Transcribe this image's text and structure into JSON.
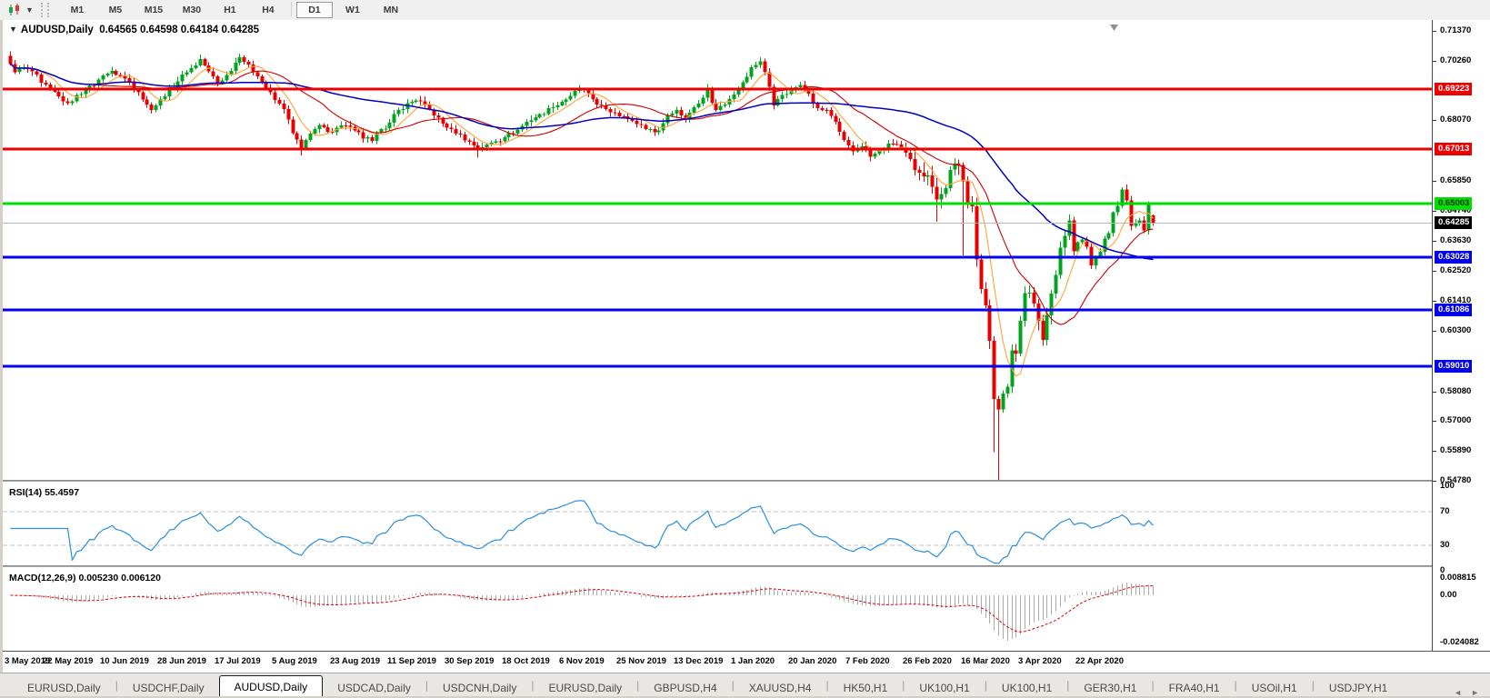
{
  "toolbar": {
    "chart_icon": "candlestick-chart",
    "dropdown_caret": "▾",
    "timeframes": [
      "M1",
      "M5",
      "M15",
      "M30",
      "H1",
      "H4",
      "D1",
      "W1",
      "MN"
    ],
    "active_timeframe": "D1"
  },
  "chart": {
    "dropdown_glyph": "▼",
    "symbol_label": "AUDUSD,Daily",
    "ohlc_text": "0.64565 0.64598 0.64184 0.64285"
  },
  "price_axis": {
    "ticks": [
      "0.71370",
      "0.70260",
      "0.68070",
      "0.65850",
      "0.64740",
      "0.63630",
      "0.62520",
      "0.61410",
      "0.60300",
      "0.58080",
      "0.57000",
      "0.55890",
      "0.54780"
    ]
  },
  "levels": [
    {
      "price": 0.69223,
      "label": "0.69223",
      "color": "#ee0000",
      "text_color": "#ffffff"
    },
    {
      "price": 0.67013,
      "label": "0.67013",
      "color": "#ee0000",
      "text_color": "#ffffff"
    },
    {
      "price": 0.65003,
      "label": "0.65003",
      "color": "#00dd00",
      "text_color": "#003300"
    },
    {
      "price": 0.63028,
      "label": "0.63028",
      "color": "#0000ee",
      "text_color": "#ffffff"
    },
    {
      "price": 0.61086,
      "label": "0.61086",
      "color": "#0000ee",
      "text_color": "#ffffff"
    },
    {
      "price": 0.5901,
      "label": "0.59010",
      "color": "#0000ee",
      "text_color": "#ffffff"
    }
  ],
  "current_price_line": {
    "price": 0.64285,
    "label": "0.64285",
    "line_color": "#b9b9b9",
    "badge_bg": "#000000",
    "badge_fg": "#ffffff"
  },
  "rsi": {
    "label": "RSI(14) 55.4597",
    "value": 55.4597,
    "period": 14,
    "line_color": "#2a8fdd",
    "level_lines": [
      70,
      30
    ],
    "ticks": [
      {
        "v": 100,
        "t": "100"
      },
      {
        "v": 70,
        "t": "70"
      },
      {
        "v": 30,
        "t": "30"
      },
      {
        "v": 0,
        "t": "0"
      }
    ]
  },
  "macd": {
    "label": "MACD(12,26,9) 0.005230 0.006120",
    "params": [
      12,
      26,
      9
    ],
    "hist_color": "#ababab",
    "signal_color": "#e00000",
    "ticks": [
      {
        "v": 0.008815,
        "t": "0.008815"
      },
      {
        "v": 0,
        "t": "0.00"
      },
      {
        "v": -0.024082,
        "t": "-0.024082"
      }
    ]
  },
  "time_axis": {
    "labels": [
      {
        "i": 0,
        "t": "3 May 2019"
      },
      {
        "i": 13,
        "t": "22 May 2019"
      },
      {
        "i": 26,
        "t": "10 Jun 2019"
      },
      {
        "i": 39,
        "t": "28 Jun 2019"
      },
      {
        "i": 52,
        "t": "17 Jul 2019"
      },
      {
        "i": 65,
        "t": "5 Aug 2019"
      },
      {
        "i": 78,
        "t": "23 Aug 2019"
      },
      {
        "i": 91,
        "t": "11 Sep 2019"
      },
      {
        "i": 104,
        "t": "30 Sep 2019"
      },
      {
        "i": 117,
        "t": "18 Oct 2019"
      },
      {
        "i": 130,
        "t": "6 Nov 2019"
      },
      {
        "i": 143,
        "t": "25 Nov 2019"
      },
      {
        "i": 156,
        "t": "13 Dec 2019"
      },
      {
        "i": 169,
        "t": "1 Jan 2020"
      },
      {
        "i": 182,
        "t": "20 Jan 2020"
      },
      {
        "i": 195,
        "t": "7 Feb 2020"
      },
      {
        "i": 208,
        "t": "26 Feb 2020"
      },
      {
        "i": 221,
        "t": "16 Mar 2020"
      },
      {
        "i": 234,
        "t": "3 Apr 2020"
      },
      {
        "i": 247,
        "t": "22 Apr 2020"
      }
    ]
  },
  "tabs": {
    "items": [
      "EURUSD,Daily",
      "USDCHF,Daily",
      "AUDUSD,Daily",
      "USDCAD,Daily",
      "USDCNH,Daily",
      "EURUSD,Daily",
      "GBPUSD,H4",
      "XAUUSD,H4",
      "HK50,H1",
      "UK100,H1",
      "UK100,H1",
      "GER30,H1",
      "FRA40,H1",
      "USOil,H1",
      "USDJPY,H1"
    ],
    "active_index": 2,
    "nav": [
      "◄",
      "►"
    ]
  },
  "chart_data": {
    "type": "candlestick",
    "symbol": "AUDUSD",
    "timeframe": "Daily",
    "n_candles": 260,
    "up_color": "#00a41e",
    "down_color": "#e60000",
    "y_axis_range": [
      0.54822,
      0.71701
    ],
    "last_candle": {
      "open": 0.64565,
      "high": 0.64598,
      "low": 0.64184,
      "close": 0.64285
    },
    "ma_overlays": [
      {
        "name": "ma-fast",
        "period": 7,
        "color": "#ffa339",
        "width": 1.1
      },
      {
        "name": "ma-mid",
        "period": 20,
        "color": "#cc0000",
        "width": 1.1
      },
      {
        "name": "ma-slow",
        "period": 50,
        "color": "#0000c0",
        "width": 1.5
      }
    ],
    "price_anchors": [
      [
        0,
        0.7015
      ],
      [
        1,
        0.6985
      ],
      [
        3,
        0.7
      ],
      [
        5,
        0.6988
      ],
      [
        7,
        0.6945
      ],
      [
        9,
        0.692
      ],
      [
        11,
        0.6895
      ],
      [
        13,
        0.687
      ],
      [
        15,
        0.69
      ],
      [
        17,
        0.692
      ],
      [
        19,
        0.6935
      ],
      [
        21,
        0.6972
      ],
      [
        23,
        0.699
      ],
      [
        25,
        0.697
      ],
      [
        27,
        0.695
      ],
      [
        29,
        0.691
      ],
      [
        31,
        0.6865
      ],
      [
        32,
        0.6845
      ],
      [
        34,
        0.6885
      ],
      [
        36,
        0.6925
      ],
      [
        38,
        0.695
      ],
      [
        40,
        0.6985
      ],
      [
        42,
        0.701
      ],
      [
        43,
        0.7032
      ],
      [
        45,
        0.6988
      ],
      [
        47,
        0.6945
      ],
      [
        49,
        0.6975
      ],
      [
        51,
        0.702
      ],
      [
        52,
        0.704
      ],
      [
        54,
        0.7012
      ],
      [
        56,
        0.697
      ],
      [
        58,
        0.6925
      ],
      [
        60,
        0.6882
      ],
      [
        62,
        0.6848
      ],
      [
        64,
        0.676
      ],
      [
        66,
        0.6705
      ],
      [
        68,
        0.6758
      ],
      [
        70,
        0.679
      ],
      [
        72,
        0.6765
      ],
      [
        74,
        0.678
      ],
      [
        76,
        0.6788
      ],
      [
        78,
        0.677
      ],
      [
        80,
        0.674
      ],
      [
        82,
        0.6732
      ],
      [
        84,
        0.6775
      ],
      [
        86,
        0.6798
      ],
      [
        88,
        0.6845
      ],
      [
        90,
        0.687
      ],
      [
        92,
        0.688
      ],
      [
        94,
        0.6865
      ],
      [
        96,
        0.6825
      ],
      [
        98,
        0.6795
      ],
      [
        100,
        0.6775
      ],
      [
        102,
        0.6755
      ],
      [
        104,
        0.6728
      ],
      [
        106,
        0.6705
      ],
      [
        108,
        0.6718
      ],
      [
        110,
        0.673
      ],
      [
        112,
        0.6745
      ],
      [
        114,
        0.6758
      ],
      [
        117,
        0.6802
      ],
      [
        120,
        0.683
      ],
      [
        123,
        0.6855
      ],
      [
        125,
        0.6875
      ],
      [
        127,
        0.6898
      ],
      [
        129,
        0.6922
      ],
      [
        131,
        0.6908
      ],
      [
        133,
        0.6865
      ],
      [
        135,
        0.6848
      ],
      [
        137,
        0.6835
      ],
      [
        139,
        0.6822
      ],
      [
        141,
        0.6805
      ],
      [
        143,
        0.679
      ],
      [
        145,
        0.6775
      ],
      [
        147,
        0.677
      ],
      [
        149,
        0.6825
      ],
      [
        151,
        0.6845
      ],
      [
        153,
        0.681
      ],
      [
        155,
        0.6855
      ],
      [
        157,
        0.689
      ],
      [
        158,
        0.692
      ],
      [
        160,
        0.6845
      ],
      [
        162,
        0.6865
      ],
      [
        164,
        0.6902
      ],
      [
        166,
        0.6948
      ],
      [
        168,
        0.7002
      ],
      [
        170,
        0.7025
      ],
      [
        171,
        0.6985
      ],
      [
        172,
        0.693
      ],
      [
        173,
        0.6862
      ],
      [
        175,
        0.69
      ],
      [
        177,
        0.6925
      ],
      [
        179,
        0.6938
      ],
      [
        181,
        0.6905
      ],
      [
        183,
        0.6852
      ],
      [
        185,
        0.6845
      ],
      [
        187,
        0.6802
      ],
      [
        189,
        0.6735
      ],
      [
        191,
        0.6692
      ],
      [
        193,
        0.6712
      ],
      [
        195,
        0.6672
      ],
      [
        197,
        0.6695
      ],
      [
        199,
        0.6722
      ],
      [
        201,
        0.6718
      ],
      [
        203,
        0.6688
      ],
      [
        205,
        0.6625
      ],
      [
        207,
        0.66
      ],
      [
        209,
        0.6562
      ],
      [
        210,
        0.6515
      ],
      [
        211,
        0.6535
      ],
      [
        213,
        0.6625
      ],
      [
        215,
        0.6642
      ],
      [
        216,
        0.6582
      ],
      [
        217,
        0.6505
      ],
      [
        218,
        0.649
      ],
      [
        219,
        0.6295
      ],
      [
        220,
        0.6185
      ],
      [
        221,
        0.6125
      ],
      [
        222,
        0.5995
      ],
      [
        223,
        0.578
      ],
      [
        224,
        0.5742
      ],
      [
        225,
        0.58
      ],
      [
        226,
        0.5825
      ],
      [
        227,
        0.596
      ],
      [
        228,
        0.5948
      ],
      [
        229,
        0.6068
      ],
      [
        230,
        0.617
      ],
      [
        231,
        0.6172
      ],
      [
        232,
        0.6132
      ],
      [
        233,
        0.6068
      ],
      [
        234,
        0.5998
      ],
      [
        235,
        0.6088
      ],
      [
        236,
        0.6168
      ],
      [
        237,
        0.6238
      ],
      [
        238,
        0.6338
      ],
      [
        239,
        0.6382
      ],
      [
        240,
        0.6438
      ],
      [
        241,
        0.6325
      ],
      [
        242,
        0.6358
      ],
      [
        243,
        0.6368
      ],
      [
        244,
        0.6342
      ],
      [
        245,
        0.6272
      ],
      [
        246,
        0.6302
      ],
      [
        247,
        0.6322
      ],
      [
        248,
        0.6372
      ],
      [
        249,
        0.6392
      ],
      [
        250,
        0.6468
      ],
      [
        251,
        0.6492
      ],
      [
        252,
        0.6552
      ],
      [
        253,
        0.6512
      ],
      [
        254,
        0.6418
      ],
      [
        255,
        0.6428
      ],
      [
        256,
        0.6438
      ],
      [
        257,
        0.6402
      ],
      [
        258,
        0.6498
      ],
      [
        259,
        0.64285
      ]
    ],
    "wick_events": [
      {
        "i": 32,
        "low": 0.6832
      },
      {
        "i": 43,
        "high": 0.7048
      },
      {
        "i": 52,
        "high": 0.7045
      },
      {
        "i": 66,
        "low": 0.6677
      },
      {
        "i": 106,
        "low": 0.667
      },
      {
        "i": 158,
        "high": 0.694
      },
      {
        "i": 170,
        "high": 0.704
      },
      {
        "i": 210,
        "low": 0.6434
      },
      {
        "i": 216,
        "low": 0.631
      },
      {
        "i": 223,
        "low": 0.5585
      },
      {
        "i": 224,
        "low": 0.548
      },
      {
        "i": 253,
        "high": 0.657
      }
    ]
  }
}
